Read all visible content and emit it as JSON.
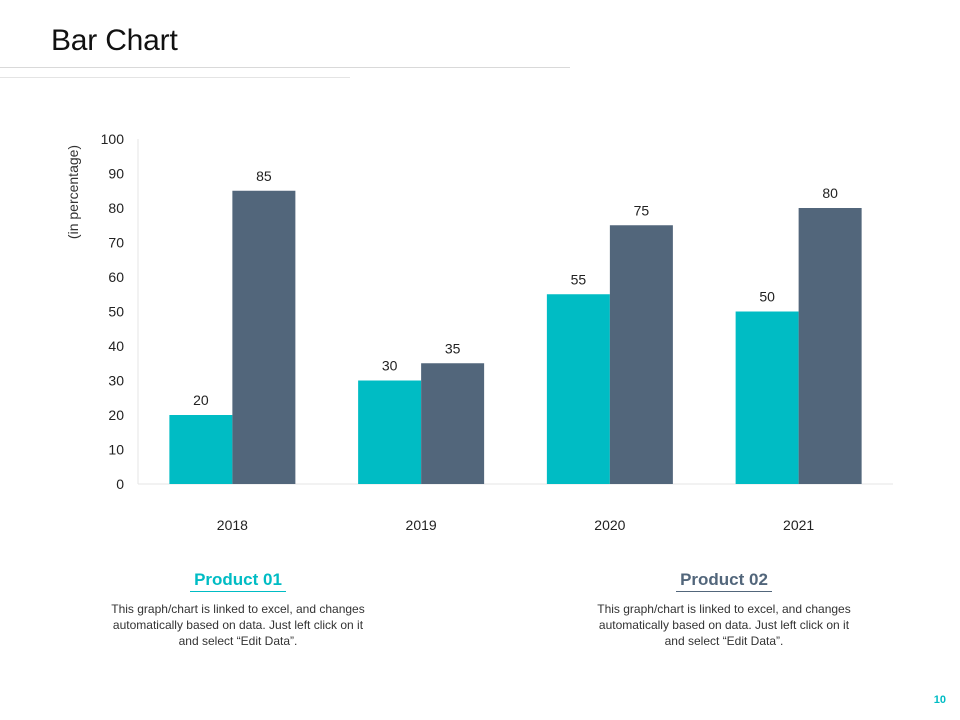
{
  "page": {
    "title": "Bar Chart",
    "page_number": "10"
  },
  "colors": {
    "product_01": "#00BCC4",
    "product_02": "#52667B",
    "page_number": "#00BCC4"
  },
  "legend": {
    "product_01": {
      "title": "Product 01",
      "description": "This graph/chart is linked to excel, and changes automatically based on data. Just left click on it and select “Edit Data”."
    },
    "product_02": {
      "title": "Product 02",
      "description": "This graph/chart is linked to excel, and changes automatically based on data. Just left click on it and select “Edit Data”."
    }
  },
  "chart_data": {
    "type": "bar",
    "title": "Bar Chart",
    "xlabel": "",
    "ylabel": "(in percentage)",
    "ylim": [
      0,
      100
    ],
    "ytick_step": 10,
    "grid": false,
    "categories": [
      "2018",
      "2019",
      "2020",
      "2021"
    ],
    "series": [
      {
        "name": "Product 01",
        "values": [
          20,
          30,
          55,
          50
        ]
      },
      {
        "name": "Product 02",
        "values": [
          85,
          35,
          75,
          80
        ]
      }
    ]
  }
}
